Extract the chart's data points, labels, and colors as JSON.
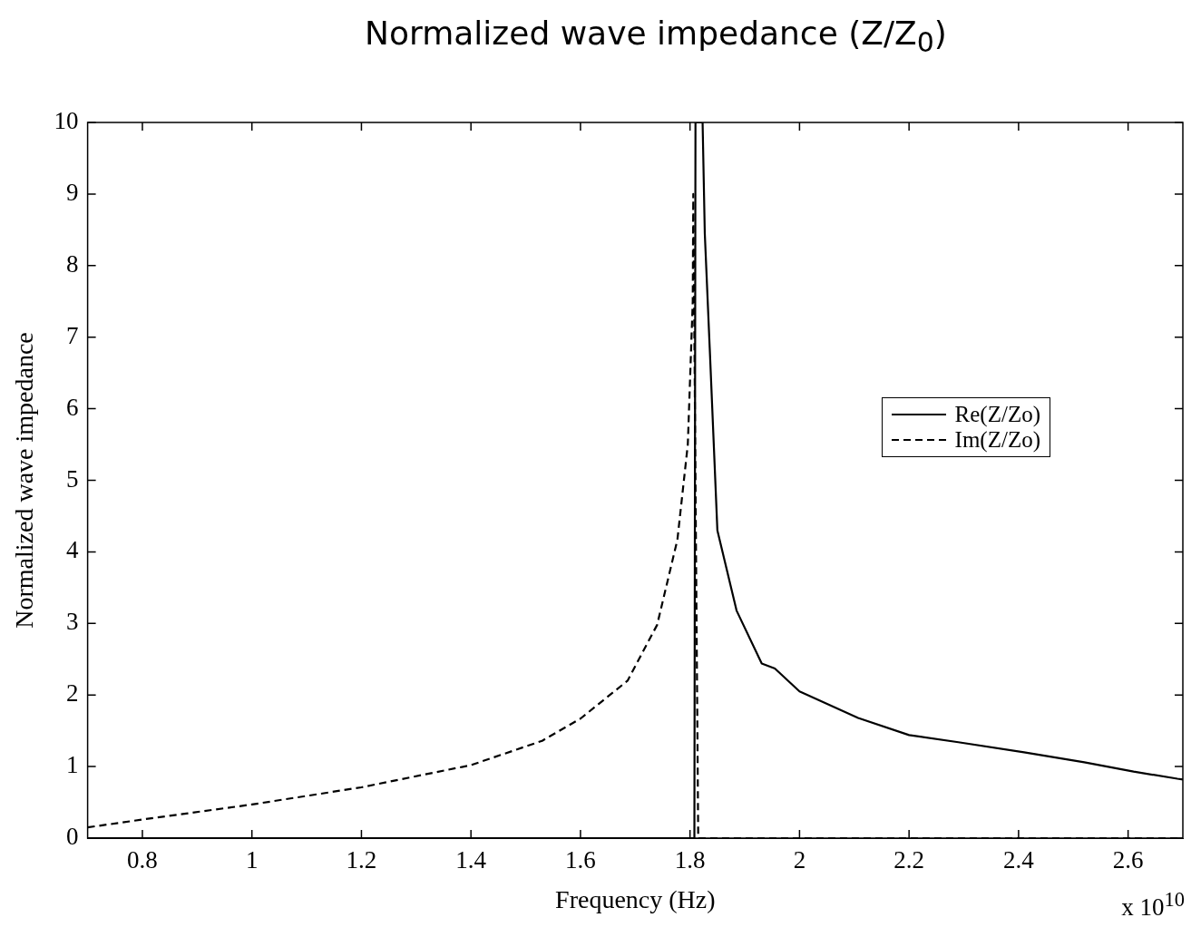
{
  "chart_data": {
    "type": "line",
    "title": "Normalized wave impedance (Z/Z$_{0}$)",
    "xlabel": "Frequency (Hz)",
    "ylabel": "Normalized wave impedance",
    "annotations": [
      "x 10$^{10}$"
    ],
    "xlim": [
      0.7,
      2.7
    ],
    "xticks": [
      0.8,
      1,
      1.2,
      1.4,
      1.6,
      1.8,
      2,
      2.2,
      2.4,
      2.6
    ],
    "ylim": [
      0,
      10
    ],
    "yticks": [
      0,
      1,
      2,
      3,
      4,
      5,
      6,
      7,
      8,
      9,
      10
    ],
    "grid": false,
    "legend": "right",
    "marker": "none",
    "series": [
      {
        "name": "Re(Z/Zo)",
        "color": "#000000",
        "line_style": "solid",
        "x": [
          0.7,
          1.808,
          1.81,
          1.823,
          1.827,
          1.836,
          1.85,
          1.885,
          1.931,
          1.955,
          2.0,
          2.107,
          2.2,
          2.29,
          2.41,
          2.52,
          2.61,
          2.69,
          2.7
        ],
        "values": [
          0,
          0,
          10,
          10,
          8.45,
          6.85,
          4.3,
          3.18,
          2.44,
          2.37,
          2.05,
          1.68,
          1.44,
          1.34,
          1.2,
          1.06,
          0.93,
          0.83,
          0.82
        ]
      },
      {
        "name": "Im(Z/Zo)",
        "color": "#000000",
        "line_style": "dashed",
        "x": [
          0.7,
          0.8,
          1.0,
          1.2,
          1.4,
          1.53,
          1.6,
          1.686,
          1.74,
          1.777,
          1.796,
          1.805,
          1.806,
          1.815,
          2.7
        ],
        "values": [
          0.15,
          0.26,
          0.47,
          0.71,
          1.02,
          1.36,
          1.67,
          2.2,
          2.98,
          4.17,
          5.5,
          7.5,
          9.0,
          0,
          0
        ]
      }
    ]
  }
}
